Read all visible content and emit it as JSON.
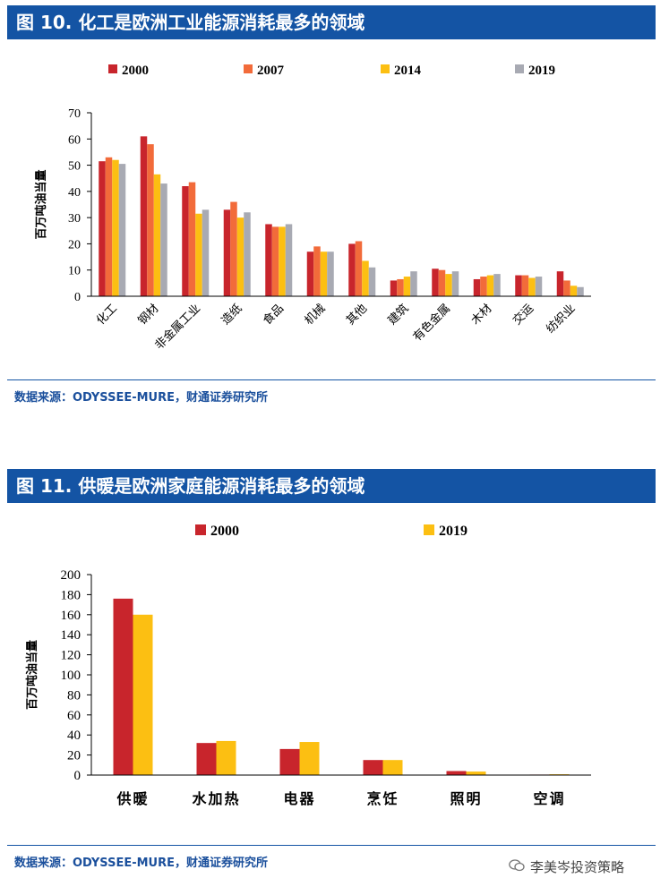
{
  "chart_data": [
    {
      "type": "bar",
      "title": "图 10. 化工是欧洲工业能源消耗最多的领域",
      "ylabel": "百万吨油当量",
      "xlabel": "",
      "ylim": [
        0,
        70
      ],
      "yticks": [
        0,
        10,
        20,
        30,
        40,
        50,
        60,
        70
      ],
      "categories": [
        "化工",
        "钢材",
        "非金属工业",
        "造纸",
        "食品",
        "机械",
        "其他",
        "建筑",
        "有色金属",
        "木材",
        "交运",
        "纺织业"
      ],
      "series": [
        {
          "name": "2000",
          "color": "#c8252c",
          "values": [
            51.5,
            61,
            42,
            33,
            27.5,
            17,
            20,
            6,
            10.5,
            6.5,
            8,
            9.5
          ]
        },
        {
          "name": "2007",
          "color": "#f26b3a",
          "values": [
            53,
            58,
            43.5,
            36,
            26.5,
            19,
            21,
            6.5,
            10,
            7.5,
            8,
            6
          ]
        },
        {
          "name": "2014",
          "color": "#fcbf12",
          "values": [
            52,
            46.5,
            31.5,
            30,
            26.5,
            17,
            13.5,
            7.5,
            8.5,
            8,
            7,
            4
          ]
        },
        {
          "name": "2019",
          "color": "#a8aab3",
          "values": [
            50.5,
            43,
            33,
            32,
            27.5,
            17,
            11,
            9.5,
            9.5,
            8.5,
            7.5,
            3.5
          ]
        }
      ],
      "legend_position": "top"
    },
    {
      "type": "bar",
      "title": "图 11. 供暖是欧洲家庭能源消耗最多的领域",
      "ylabel": "百万吨油当量",
      "xlabel": "",
      "ylim": [
        0,
        200
      ],
      "yticks": [
        0,
        20,
        40,
        60,
        80,
        100,
        120,
        140,
        160,
        180,
        200
      ],
      "categories": [
        "供暖",
        "水加热",
        "电器",
        "烹饪",
        "照明",
        "空调"
      ],
      "series": [
        {
          "name": "2000",
          "color": "#c8252c",
          "values": [
            176,
            32,
            26,
            15,
            4,
            0.5
          ]
        },
        {
          "name": "2019",
          "color": "#fcbf12",
          "values": [
            160,
            34,
            33,
            15,
            3.5,
            0.8
          ]
        }
      ],
      "legend_position": "top"
    }
  ],
  "sources": [
    "数据来源：ODYSSEE-MURE，财通证券研究所",
    "数据来源：ODYSSEE-MURE，财通证券研究所"
  ],
  "watermark": {
    "icon": "wechat-icon",
    "text": "李美岑投资策略"
  }
}
